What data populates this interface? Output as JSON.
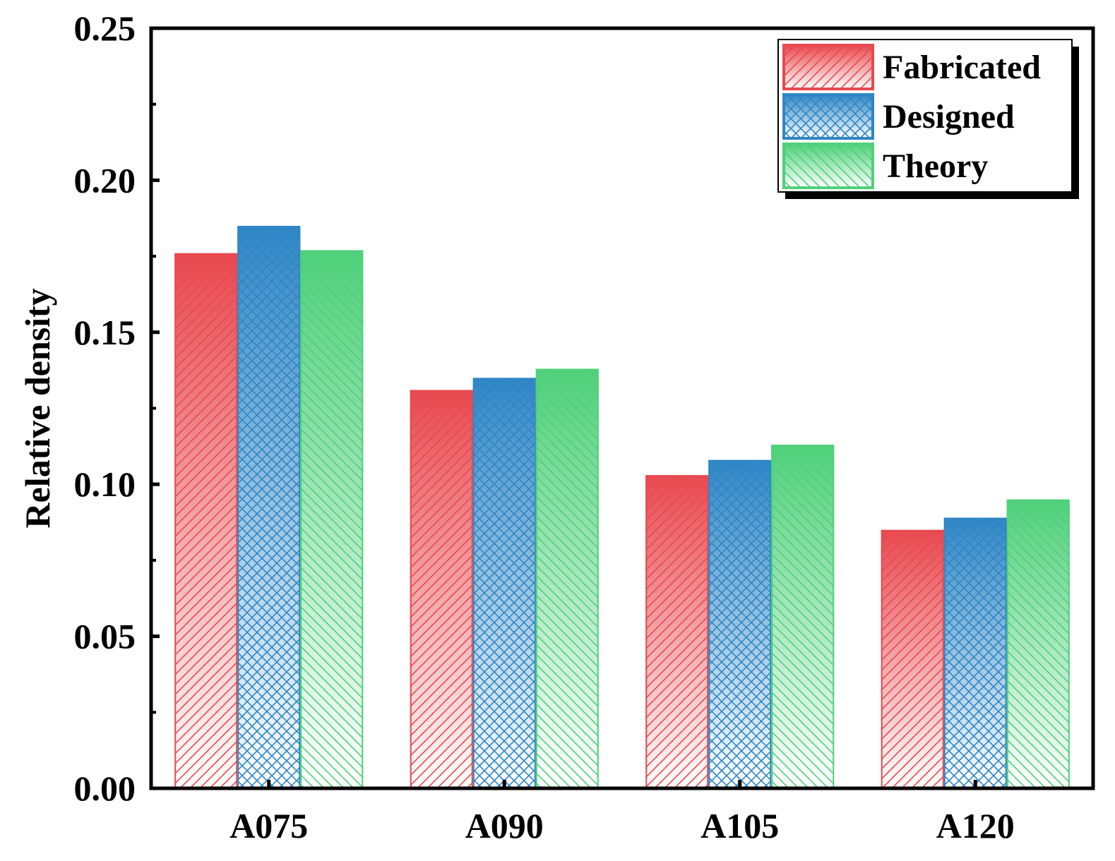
{
  "chart_data": {
    "type": "bar",
    "title": "",
    "xlabel": "",
    "ylabel": "Relative density",
    "categories": [
      "A075",
      "A090",
      "A105",
      "A120"
    ],
    "ylim": [
      0,
      0.25
    ],
    "yticks": [
      "0.00",
      "0.05",
      "0.10",
      "0.15",
      "0.20",
      "0.25"
    ],
    "ytick_values": [
      0,
      0.05,
      0.1,
      0.15,
      0.2,
      0.25
    ],
    "grid": false,
    "legend_position": "top-right",
    "series": [
      {
        "name": "Fabricated",
        "color": "#e8494f",
        "pattern": "diagonal-forward",
        "values": [
          0.176,
          0.131,
          0.103,
          0.085
        ]
      },
      {
        "name": "Designed",
        "color": "#2f86c5",
        "pattern": "crosshatch",
        "values": [
          0.185,
          0.135,
          0.108,
          0.089
        ]
      },
      {
        "name": "Theory",
        "color": "#4fd07a",
        "pattern": "diagonal-back",
        "values": [
          0.177,
          0.138,
          0.113,
          0.095
        ]
      }
    ]
  }
}
